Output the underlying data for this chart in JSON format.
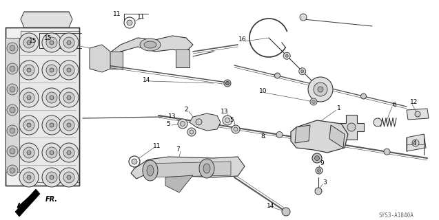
{
  "diagram_code": "SYS3-A1840A",
  "bg_color": "#ffffff",
  "lc": "#333333",
  "fr_label": "FR.",
  "figsize": [
    6.37,
    3.2
  ],
  "dpi": 100
}
